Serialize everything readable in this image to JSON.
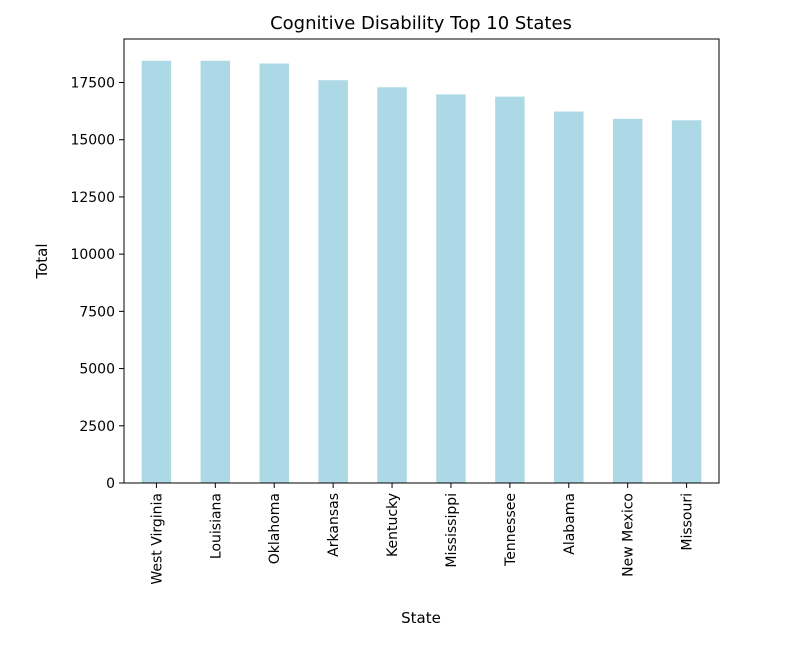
{
  "chart_data": {
    "type": "bar",
    "title": "Cognitive Disability Top 10 States",
    "xlabel": "State",
    "ylabel": "Total",
    "categories": [
      "West Virginia",
      "Louisiana",
      "Oklahoma",
      "Arkansas",
      "Kentucky",
      "Mississippi",
      "Tennessee",
      "Alabama",
      "New Mexico",
      "Missouri"
    ],
    "values": [
      18450,
      18450,
      18330,
      17600,
      17290,
      16980,
      16880,
      16230,
      15910,
      15850
    ],
    "yticks": [
      0,
      2500,
      5000,
      7500,
      10000,
      12500,
      15000,
      17500
    ],
    "ylim": [
      0,
      19400
    ],
    "bar_color": "#add8e6",
    "grid": false,
    "legend": "none"
  }
}
